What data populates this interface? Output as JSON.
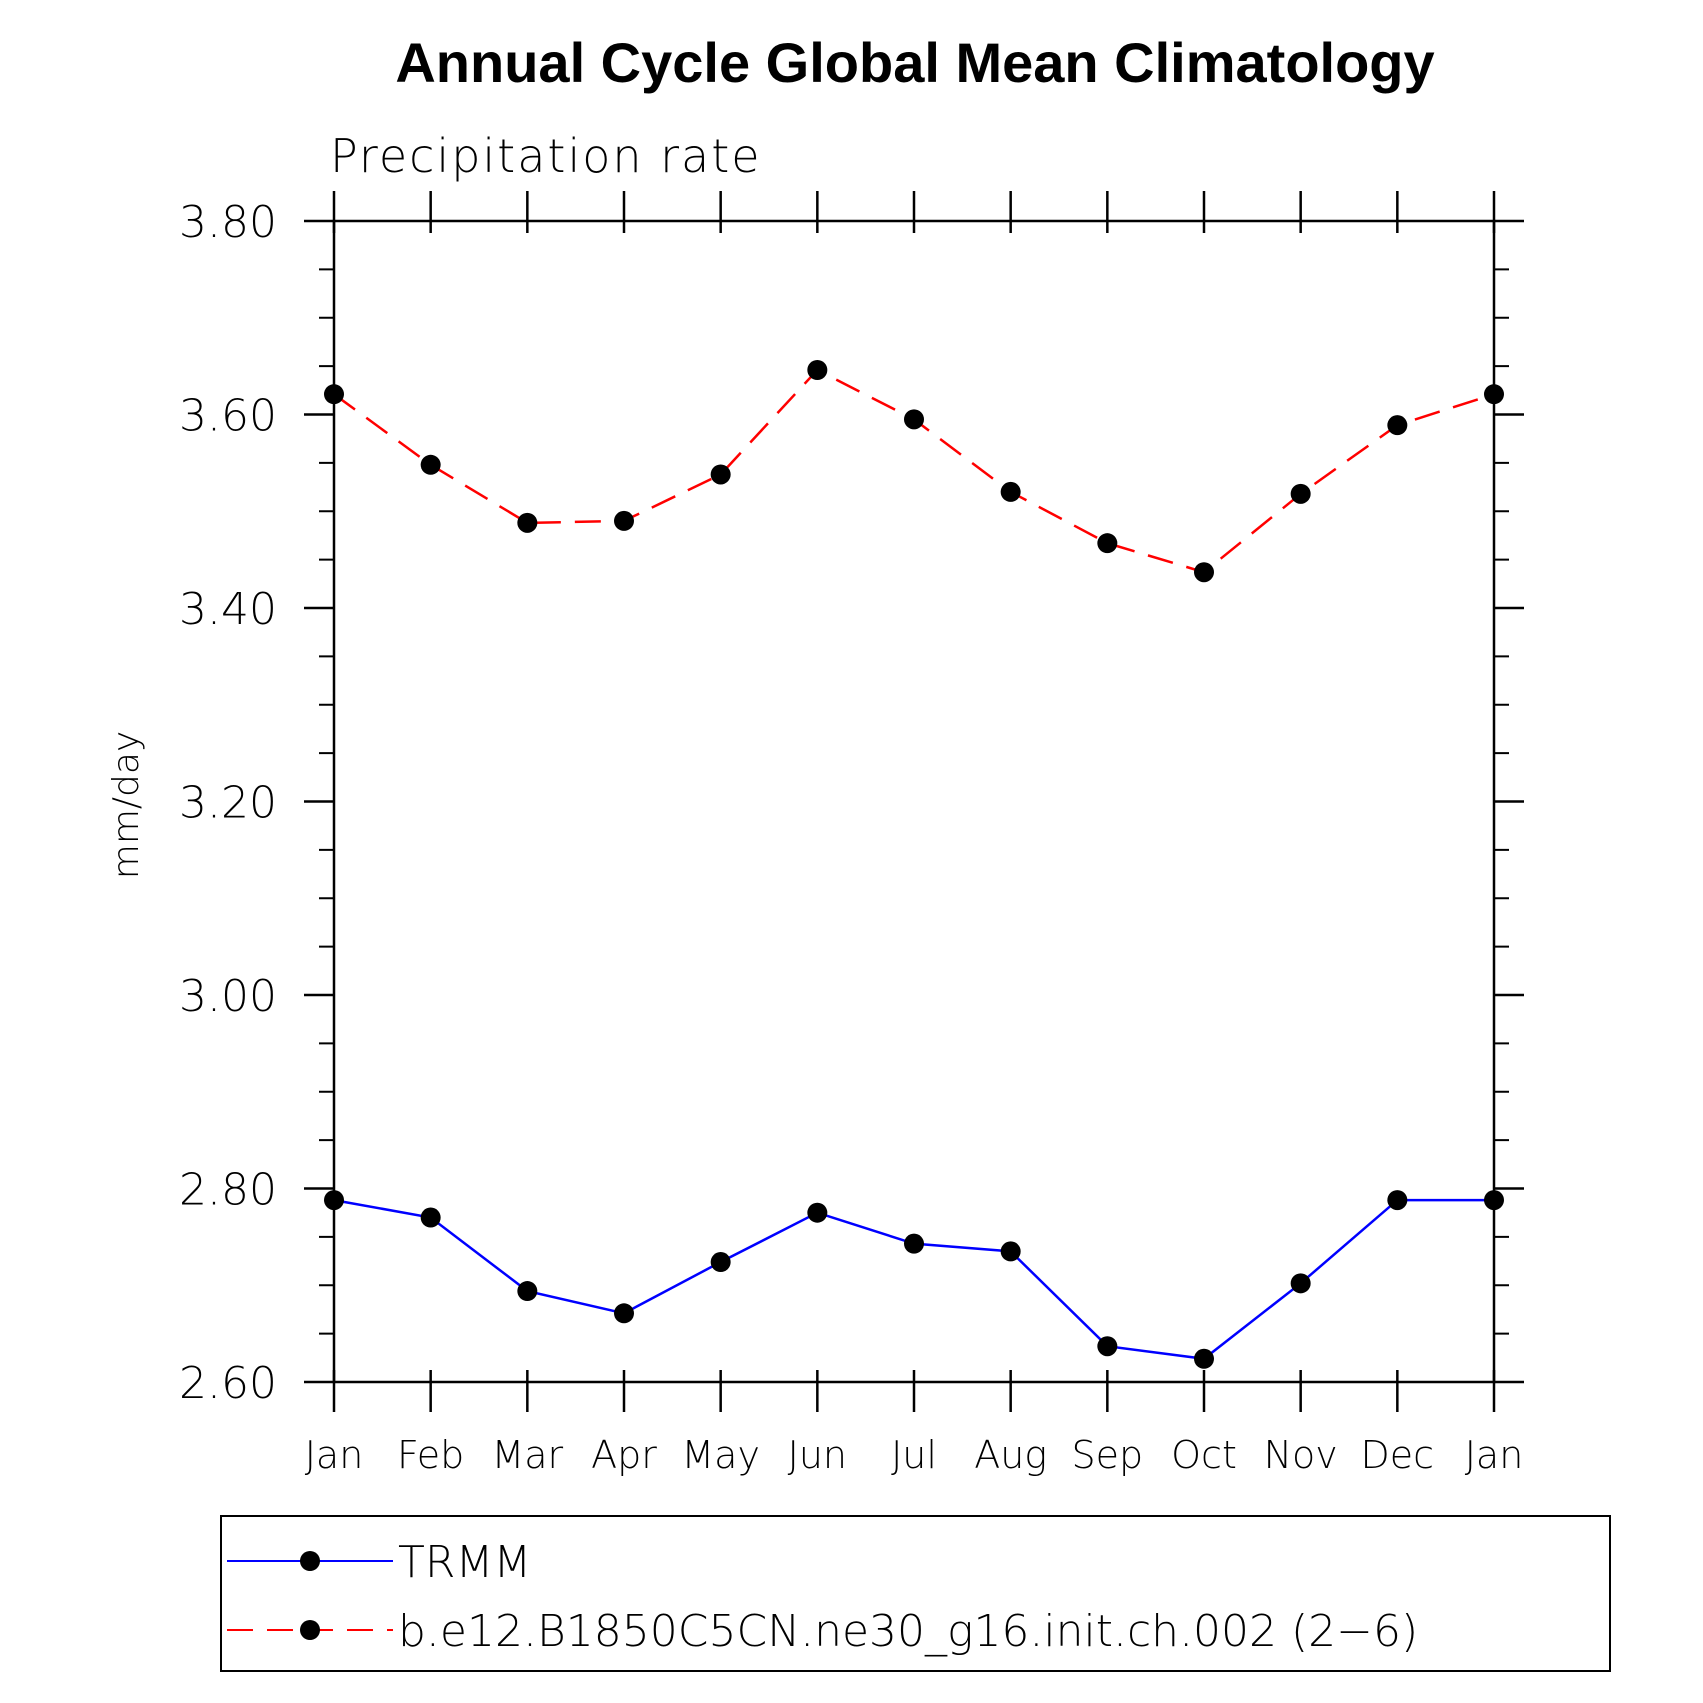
{
  "chart_data": {
    "type": "line",
    "title": "Annual Cycle Global Mean Climatology",
    "subtitle": "Precipitation rate",
    "ylabel": "mm/day",
    "xlabel": "",
    "categories": [
      "Jan",
      "Feb",
      "Mar",
      "Apr",
      "May",
      "Jun",
      "Jul",
      "Aug",
      "Sep",
      "Oct",
      "Nov",
      "Dec",
      "Jan"
    ],
    "ylim": [
      2.6,
      3.8
    ],
    "yticks": [
      "2.60",
      "2.80",
      "3.00",
      "3.20",
      "3.40",
      "3.60",
      "3.80"
    ],
    "ytick_values": [
      2.6,
      2.8,
      3.0,
      3.2,
      3.4,
      3.6,
      3.8
    ],
    "grid": false,
    "legend_position": "bottom",
    "series": [
      {
        "name": "TRMM",
        "color": "#0000ff",
        "line_style": "solid",
        "marker": "filled-circle",
        "values": [
          2.788,
          2.77,
          2.694,
          2.671,
          2.724,
          2.775,
          2.743,
          2.735,
          2.637,
          2.624,
          2.702,
          2.788,
          2.788
        ]
      },
      {
        "name": "b.e12.B1850C5CN.ne30_g16.init.ch.002 (2−6)",
        "color": "#ff0000",
        "line_style": "dashed",
        "marker": "filled-circle",
        "values": [
          3.621,
          3.548,
          3.488,
          3.49,
          3.538,
          3.646,
          3.595,
          3.52,
          3.467,
          3.437,
          3.518,
          3.589,
          3.621
        ]
      }
    ]
  }
}
